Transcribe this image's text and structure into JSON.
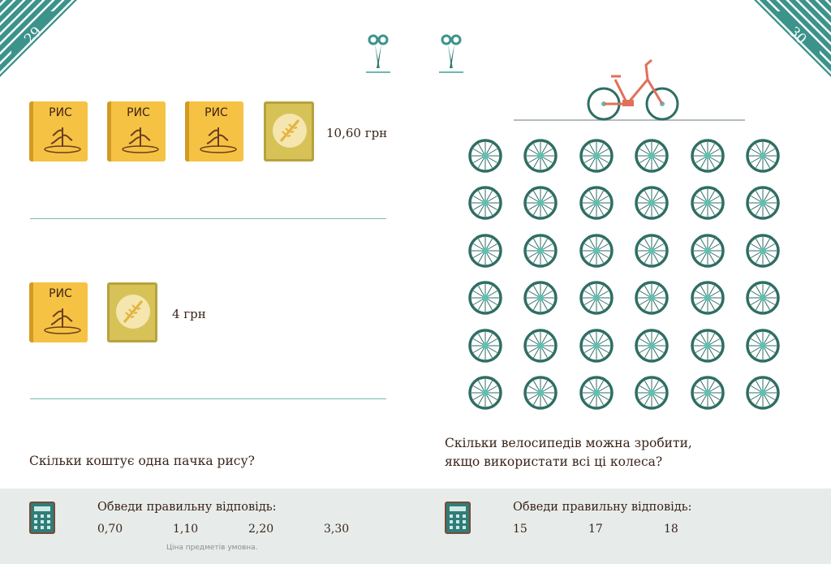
{
  "pages": {
    "left_number": "29",
    "right_number": "30"
  },
  "left": {
    "row1_label": "РИС",
    "row1_price": "10,60 грн",
    "row2_label": "РИС",
    "row2_price": "4 грн",
    "question": "Скільки коштує одна пачка рису?",
    "instruction": "Обведи правильну відповідь:",
    "answers": [
      "0,70",
      "1,10",
      "2,20",
      "3,30"
    ],
    "note": "Ціна предметів умовна."
  },
  "right": {
    "question_line1": "Скільки велосипедів можна зробити,",
    "question_line2": "якщо використати всі ці колеса?",
    "instruction": "Обведи правильну відповідь:",
    "answers": [
      "15",
      "17",
      "18"
    ],
    "wheel_rows": 6,
    "wheel_cols": 6
  },
  "colors": {
    "stripe": "#3c938b",
    "teal": "#2f6e63",
    "footer": "#e7eceb",
    "bike": "#e0715a"
  },
  "icons": [
    "scissors-icon",
    "rice-box-icon",
    "can-icon",
    "bicycle-icon",
    "wheel-icon",
    "calculator-icon"
  ]
}
